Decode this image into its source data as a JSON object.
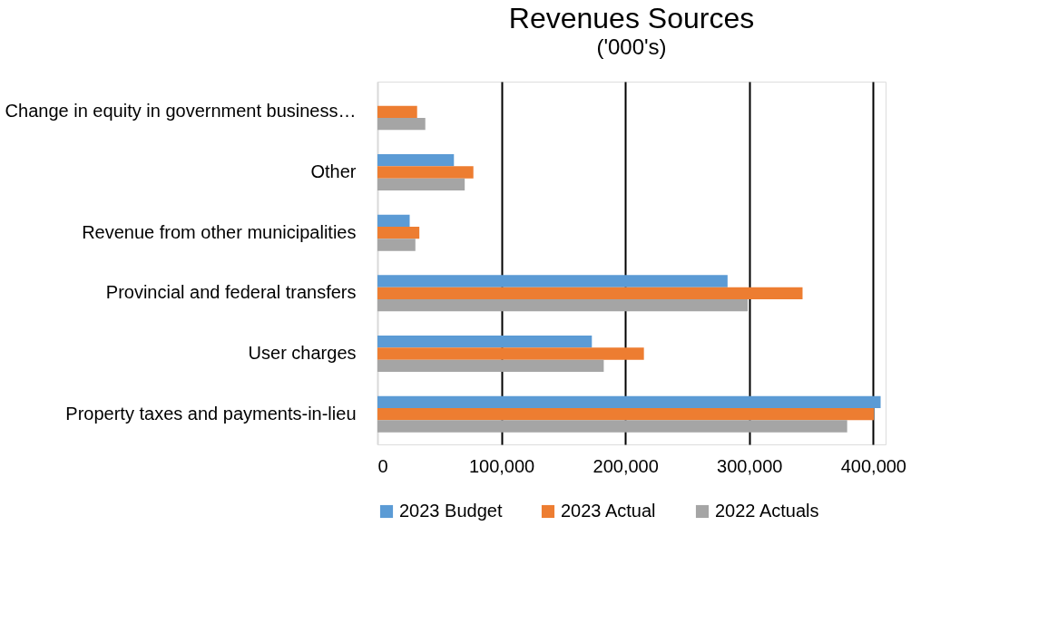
{
  "chart_data": {
    "type": "bar",
    "orientation": "horizontal",
    "title": "Revenues Sources",
    "subtitle": "('000's)",
    "categories": [
      "Change in equity in government business…",
      "Other",
      "Revenue from other municipalities",
      "Provincial and federal transfers",
      "User charges",
      "Property taxes and payments-in-lieu"
    ],
    "series": [
      {
        "name": "2023 Budget",
        "color": "#5b9bd5",
        "values": [
          null,
          61700,
          26000,
          282500,
          173000,
          406000
        ]
      },
      {
        "name": "2023 Actual",
        "color": "#ed7d31",
        "values": [
          32000,
          77400,
          33800,
          343000,
          215000,
          400500
        ]
      },
      {
        "name": "2022 Actuals",
        "color": "#a5a5a5",
        "values": [
          38600,
          70400,
          30600,
          298700,
          182600,
          379000
        ]
      }
    ],
    "xlim": [
      0,
      410000
    ],
    "xticks": [
      0,
      {
        "value": 100000,
        "label": "100,000"
      },
      {
        "value": 200000,
        "label": "200,000"
      },
      {
        "value": 300000,
        "label": "300,000"
      },
      {
        "value": 400000,
        "label": "400,000"
      }
    ],
    "grid": "x",
    "legend": "bottom"
  }
}
